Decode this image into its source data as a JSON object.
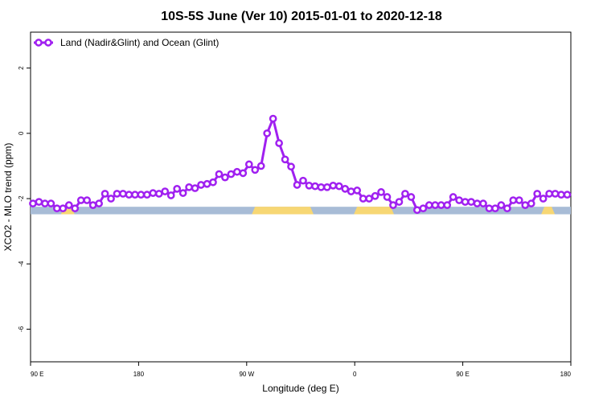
{
  "chart_data": {
    "type": "line",
    "title": "10S-5S June (Ver 10)   2015-01-01 to 2020-12-18",
    "xlabel": "Longitude (deg E)",
    "ylabel": "XCO2 - MLO trend (ppm)",
    "x_ticks": [
      {
        "value": 90,
        "label": "90 E"
      },
      {
        "value": 180,
        "label": "180"
      },
      {
        "value": 270,
        "label": "90 W"
      },
      {
        "value": 360,
        "label": "0"
      },
      {
        "value": 450,
        "label": "90 E"
      },
      {
        "value": 540,
        "label": "180"
      }
    ],
    "y_ticks": [
      {
        "value": 2,
        "label": "2"
      },
      {
        "value": 0,
        "label": "0"
      },
      {
        "value": -2,
        "label": "-2"
      },
      {
        "value": -4,
        "label": "-4"
      },
      {
        "value": -6,
        "label": "-6"
      }
    ],
    "xlim": [
      90,
      540
    ],
    "ylim": [
      -7,
      3.1
    ],
    "grid": false,
    "legend_position": "top-left",
    "series": [
      {
        "name": "Land (Nadir&Glint) and Ocean (Glint)",
        "color": "#a020f0",
        "x": [
          92,
          97,
          102,
          107,
          112,
          117,
          122,
          127,
          132,
          137,
          142,
          147,
          152,
          157,
          162,
          167,
          172,
          177,
          182,
          187,
          192,
          197,
          202,
          207,
          212,
          217,
          222,
          227,
          232,
          237,
          242,
          247,
          252,
          257,
          262,
          267,
          272,
          277,
          282,
          287,
          292,
          297,
          302,
          307,
          312,
          317,
          322,
          327,
          332,
          337,
          342,
          347,
          352,
          357,
          362,
          367,
          372,
          377,
          382,
          387,
          392,
          397,
          402,
          407,
          412,
          417,
          422,
          427,
          432,
          437,
          442,
          447,
          452,
          457,
          462,
          467,
          472,
          477,
          482,
          487,
          492,
          497,
          502,
          507,
          512,
          517,
          522,
          527,
          532,
          537
        ],
        "values": [
          -2.15,
          -2.1,
          -2.15,
          -2.15,
          -2.3,
          -2.3,
          -2.2,
          -2.3,
          -2.05,
          -2.05,
          -2.2,
          -2.15,
          -1.85,
          -2.0,
          -1.85,
          -1.85,
          -1.88,
          -1.88,
          -1.88,
          -1.88,
          -1.83,
          -1.85,
          -1.78,
          -1.9,
          -1.7,
          -1.83,
          -1.65,
          -1.68,
          -1.58,
          -1.55,
          -1.5,
          -1.25,
          -1.35,
          -1.25,
          -1.18,
          -1.22,
          -0.95,
          -1.12,
          -1.0,
          0.0,
          0.45,
          -0.3,
          -0.8,
          -1.02,
          -1.58,
          -1.45,
          -1.6,
          -1.62,
          -1.65,
          -1.65,
          -1.6,
          -1.62,
          -1.7,
          -1.78,
          -1.75,
          -2.0,
          -2.0,
          -1.92,
          -1.8,
          -1.95,
          -2.2,
          -2.1,
          -1.85,
          -1.95,
          -2.35,
          -2.3,
          -2.2,
          -2.2,
          -2.2,
          -2.2,
          -1.95,
          -2.05,
          -2.1,
          -2.1,
          -2.15,
          -2.15,
          -2.3,
          -2.3,
          -2.2,
          -2.3,
          -2.05,
          -2.05,
          -2.2,
          -2.15,
          -1.85,
          -2.0,
          -1.85,
          -1.85,
          -1.88,
          -1.88
        ]
      }
    ],
    "map_strip": {
      "y_top": -2.25,
      "y_bottom": -2.48,
      "ocean_color": "#a8bcd6",
      "land_color": "#f7d774",
      "land_ranges": [
        [
          118,
          124
        ],
        [
          277,
          323
        ],
        [
          362,
          390
        ],
        [
          518,
          524
        ]
      ]
    }
  }
}
